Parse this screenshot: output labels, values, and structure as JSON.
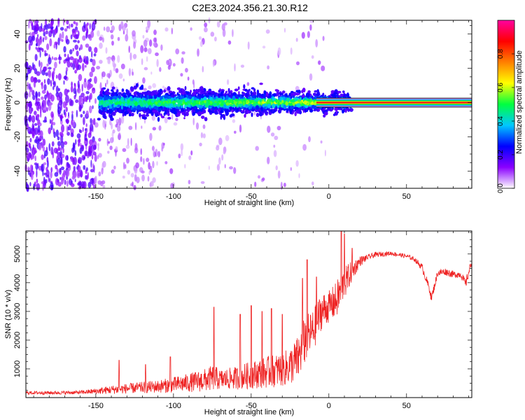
{
  "figure": {
    "title": "C2E3.2024.356.21.30.R12"
  },
  "chart_data": [
    {
      "type": "heatmap",
      "xlabel": "Height of straight line (km)",
      "ylabel": "Frequency (Hz)",
      "xlim": [
        -195,
        92
      ],
      "ylim": [
        -50,
        48
      ],
      "xticks": [
        -150,
        -100,
        -50,
        0,
        50
      ],
      "yticks": [
        -40,
        -20,
        0,
        20,
        40
      ],
      "ridge": {
        "x_start": -148,
        "x_end": 92,
        "center_hz": 0,
        "half_width_hz_at_start": 7,
        "half_width_hz_at_end": 3
      },
      "colorbar": {
        "label": "Normalized spectral amplitude",
        "range": [
          0,
          1
        ],
        "ticks": [
          "0.0",
          "0.2",
          "0.4",
          "0.6",
          "0.8"
        ],
        "colors": [
          "#ffffff",
          "#8a00ff",
          "#0000ff",
          "#00c8ff",
          "#00ff40",
          "#ffff00",
          "#ff8000",
          "#ff0000",
          "#ff00a0"
        ]
      }
    },
    {
      "type": "line",
      "xlabel": "Height of straight line (km)",
      "ylabel": "SNR (10 * v/v)",
      "xlim": [
        -195,
        92
      ],
      "ylim": [
        0,
        5800
      ],
      "xticks": [
        -150,
        -100,
        -50,
        0,
        50
      ],
      "yticks": [
        1000,
        2000,
        3000,
        4000,
        5000
      ],
      "color": "#ee2222",
      "envelope": {
        "x": [
          -195,
          -175,
          -160,
          -150,
          -140,
          -130,
          -120,
          -110,
          -100,
          -90,
          -80,
          -74,
          -70,
          -60,
          -55,
          -50,
          -40,
          -30,
          -25,
          -20,
          -15,
          -12,
          -10,
          -5,
          0,
          5,
          8,
          10,
          12,
          15,
          20,
          25,
          30,
          40,
          50,
          55,
          60,
          65,
          66,
          70,
          75,
          80,
          85,
          88,
          92
        ],
        "base": [
          150,
          150,
          160,
          190,
          230,
          260,
          290,
          320,
          360,
          420,
          480,
          560,
          520,
          560,
          600,
          640,
          720,
          800,
          900,
          1100,
          1800,
          2000,
          2100,
          2800,
          3000,
          3200,
          3600,
          3800,
          4000,
          4300,
          4700,
          4850,
          4950,
          5000,
          4900,
          4800,
          4500,
          3700,
          3400,
          4300,
          4350,
          4250,
          4250,
          3900,
          4700
        ],
        "amp": [
          120,
          120,
          130,
          200,
          300,
          350,
          400,
          450,
          550,
          650,
          800,
          900,
          700,
          800,
          900,
          950,
          1100,
          1200,
          1300,
          1600,
          1700,
          1500,
          1500,
          1300,
          1100,
          1300,
          1300,
          1100,
          1000,
          700,
          350,
          200,
          180,
          150,
          150,
          150,
          250,
          300,
          300,
          250,
          250,
          250,
          250,
          350,
          300
        ],
        "spikes": [
          {
            "x": -135,
            "y": 1300
          },
          {
            "x": -118,
            "y": 1150
          },
          {
            "x": -102,
            "y": 1420
          },
          {
            "x": -74,
            "y": 3150
          },
          {
            "x": -57,
            "y": 2900
          },
          {
            "x": -50,
            "y": 3200
          },
          {
            "x": -43,
            "y": 3000
          },
          {
            "x": -37,
            "y": 3100
          },
          {
            "x": -30,
            "y": 2900
          },
          {
            "x": -17,
            "y": 4150
          },
          {
            "x": -14,
            "y": 4800
          },
          {
            "x": -8,
            "y": 4200
          },
          {
            "x": 8,
            "y": 5800
          },
          {
            "x": 10,
            "y": 5700
          },
          {
            "x": 15,
            "y": 5200
          }
        ]
      }
    }
  ]
}
